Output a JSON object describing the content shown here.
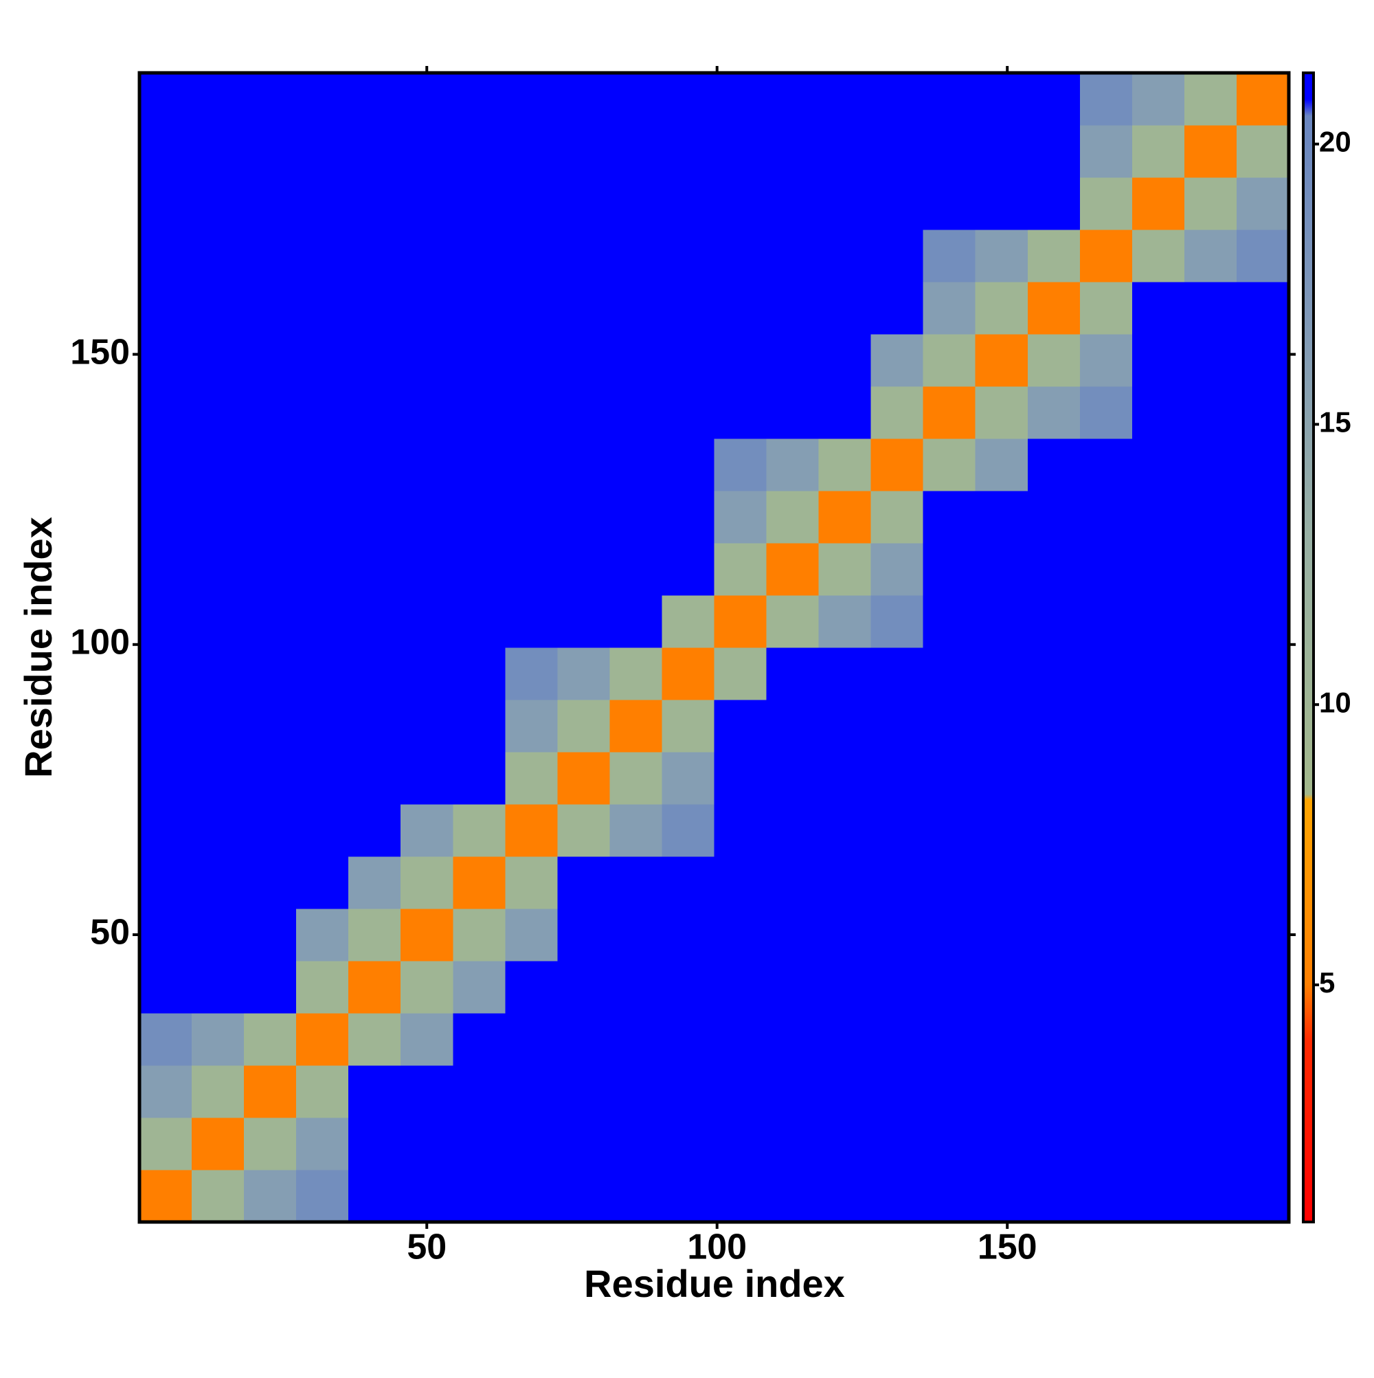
{
  "chart_data": {
    "type": "heatmap",
    "x_label": "Residue index",
    "y_label": "Residue index",
    "bins": [
      0.5,
      9.5,
      18.5,
      27.5,
      36.5,
      45.5,
      54.5,
      63.5,
      72.5,
      81.5,
      90.5,
      99.5,
      108.5,
      117.5,
      126.5,
      135.5,
      144.5,
      153.5,
      162.5,
      171.5,
      180.5,
      189.5,
      198.5
    ],
    "z": [
      [
        5,
        10,
        16,
        19,
        21,
        21,
        21,
        21,
        21,
        21,
        21,
        21,
        21,
        21,
        21,
        21,
        21,
        21,
        21,
        21,
        21,
        21
      ],
      [
        10,
        5,
        10,
        16,
        21,
        21,
        21,
        21,
        21,
        21,
        21,
        21,
        21,
        21,
        21,
        21,
        21,
        21,
        21,
        21,
        21,
        21
      ],
      [
        16,
        10,
        5,
        10,
        21,
        21,
        21,
        21,
        21,
        21,
        21,
        21,
        21,
        21,
        21,
        21,
        21,
        21,
        21,
        21,
        21,
        21
      ],
      [
        19,
        16,
        10,
        5,
        10,
        16,
        21,
        21,
        21,
        21,
        21,
        21,
        21,
        21,
        21,
        21,
        21,
        21,
        21,
        21,
        21,
        21
      ],
      [
        21,
        21,
        21,
        10,
        5,
        10,
        16,
        21,
        21,
        21,
        21,
        21,
        21,
        21,
        21,
        21,
        21,
        21,
        21,
        21,
        21,
        21
      ],
      [
        21,
        21,
        21,
        16,
        10,
        5,
        10,
        16,
        21,
        21,
        21,
        21,
        21,
        21,
        21,
        21,
        21,
        21,
        21,
        21,
        21,
        21
      ],
      [
        21,
        21,
        21,
        21,
        16,
        10,
        5,
        10,
        21,
        21,
        21,
        21,
        21,
        21,
        21,
        21,
        21,
        21,
        21,
        21,
        21,
        21
      ],
      [
        21,
        21,
        21,
        21,
        21,
        16,
        10,
        5,
        10,
        16,
        19,
        21,
        21,
        21,
        21,
        21,
        21,
        21,
        21,
        21,
        21,
        21
      ],
      [
        21,
        21,
        21,
        21,
        21,
        21,
        21,
        10,
        5,
        10,
        16,
        21,
        21,
        21,
        21,
        21,
        21,
        21,
        21,
        21,
        21,
        21
      ],
      [
        21,
        21,
        21,
        21,
        21,
        21,
        21,
        16,
        10,
        5,
        10,
        21,
        21,
        21,
        21,
        21,
        21,
        21,
        21,
        21,
        21,
        21
      ],
      [
        21,
        21,
        21,
        21,
        21,
        21,
        21,
        19,
        16,
        10,
        5,
        10,
        21,
        21,
        21,
        21,
        21,
        21,
        21,
        21,
        21,
        21
      ],
      [
        21,
        21,
        21,
        21,
        21,
        21,
        21,
        21,
        21,
        21,
        10,
        5,
        10,
        16,
        19,
        21,
        21,
        21,
        21,
        21,
        21,
        21
      ],
      [
        21,
        21,
        21,
        21,
        21,
        21,
        21,
        21,
        21,
        21,
        21,
        10,
        5,
        10,
        16,
        21,
        21,
        21,
        21,
        21,
        21,
        21
      ],
      [
        21,
        21,
        21,
        21,
        21,
        21,
        21,
        21,
        21,
        21,
        21,
        16,
        10,
        5,
        10,
        21,
        21,
        21,
        21,
        21,
        21,
        21
      ],
      [
        21,
        21,
        21,
        21,
        21,
        21,
        21,
        21,
        21,
        21,
        21,
        19,
        16,
        10,
        5,
        10,
        16,
        21,
        21,
        21,
        21,
        21
      ],
      [
        21,
        21,
        21,
        21,
        21,
        21,
        21,
        21,
        21,
        21,
        21,
        21,
        21,
        21,
        10,
        5,
        10,
        16,
        19,
        21,
        21,
        21
      ],
      [
        21,
        21,
        21,
        21,
        21,
        21,
        21,
        21,
        21,
        21,
        21,
        21,
        21,
        21,
        16,
        10,
        5,
        10,
        16,
        21,
        21,
        21
      ],
      [
        21,
        21,
        21,
        21,
        21,
        21,
        21,
        21,
        21,
        21,
        21,
        21,
        21,
        21,
        21,
        16,
        10,
        5,
        10,
        21,
        21,
        21
      ],
      [
        21,
        21,
        21,
        21,
        21,
        21,
        21,
        21,
        21,
        21,
        21,
        21,
        21,
        21,
        21,
        19,
        16,
        10,
        5,
        10,
        16,
        19
      ],
      [
        21,
        21,
        21,
        21,
        21,
        21,
        21,
        21,
        21,
        21,
        21,
        21,
        21,
        21,
        21,
        21,
        21,
        21,
        10,
        5,
        10,
        16
      ],
      [
        21,
        21,
        21,
        21,
        21,
        21,
        21,
        21,
        21,
        21,
        21,
        21,
        21,
        21,
        21,
        21,
        21,
        21,
        16,
        10,
        5,
        10
      ],
      [
        21,
        21,
        21,
        21,
        21,
        21,
        21,
        21,
        21,
        21,
        21,
        21,
        21,
        21,
        21,
        21,
        21,
        21,
        19,
        16,
        10,
        5
      ]
    ],
    "xlim": [
      0.5,
      198.5
    ],
    "ylim": [
      0.5,
      198.5
    ],
    "xticks": [
      50,
      100,
      150
    ],
    "yticks": [
      50,
      100,
      150
    ],
    "zlim": [
      0.77,
      21.27
    ],
    "colorbar_ticks": [
      5,
      10,
      15,
      20
    ],
    "colorscale": [
      [
        0.77,
        "#ff0000"
      ],
      [
        4,
        "#ff2a00"
      ],
      [
        5,
        "#ff7f00"
      ],
      [
        8.3,
        "#ffa500"
      ],
      [
        8.4,
        "#a3b88c"
      ],
      [
        13,
        "#98b0a4"
      ],
      [
        17,
        "#7f98b8"
      ],
      [
        20.5,
        "#6a86c0"
      ],
      [
        20.8,
        "#0000ff"
      ],
      [
        21.27,
        "#0000ff"
      ]
    ]
  }
}
